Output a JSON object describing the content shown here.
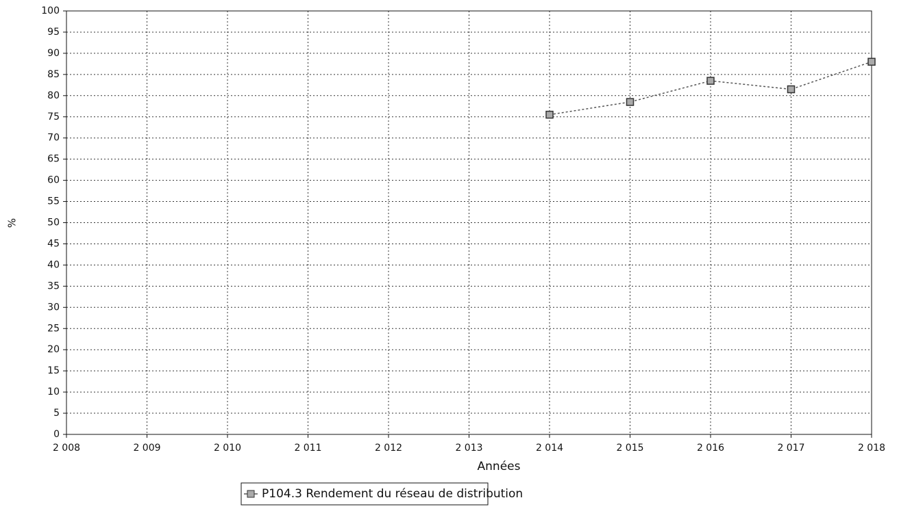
{
  "chart_data": {
    "type": "line",
    "xlabel": "Années",
    "ylabel": "%",
    "x": [
      2014,
      2015,
      2016,
      2017,
      2018
    ],
    "series": [
      {
        "name": "P104.3 Rendement du réseau de distribution",
        "color": "#555555",
        "values": [
          75.5,
          78.5,
          83.5,
          81.5,
          88
        ]
      }
    ],
    "xlim": [
      2008,
      2018
    ],
    "xticks": [
      {
        "value": 2008,
        "label": "2 008"
      },
      {
        "value": 2009,
        "label": "2 009"
      },
      {
        "value": 2010,
        "label": "2 010"
      },
      {
        "value": 2011,
        "label": "2 011"
      },
      {
        "value": 2012,
        "label": "2 012"
      },
      {
        "value": 2013,
        "label": "2 013"
      },
      {
        "value": 2014,
        "label": "2 014"
      },
      {
        "value": 2015,
        "label": "2 015"
      },
      {
        "value": 2016,
        "label": "2 016"
      },
      {
        "value": 2017,
        "label": "2 017"
      },
      {
        "value": 2018,
        "label": "2 018"
      }
    ],
    "ylim": [
      0,
      100
    ],
    "yticks": [
      0,
      5,
      10,
      15,
      20,
      25,
      30,
      35,
      40,
      45,
      50,
      55,
      60,
      65,
      70,
      75,
      80,
      85,
      90,
      95,
      100
    ],
    "grid": true,
    "legend": "bottom"
  }
}
